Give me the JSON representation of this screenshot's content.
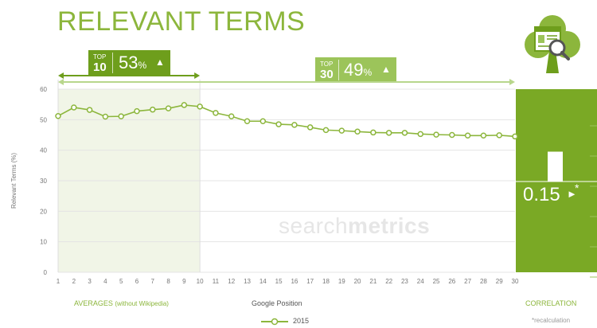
{
  "header": {
    "title": "RELEVANT TERMS"
  },
  "badges": {
    "top10": {
      "top": "TOP",
      "num": "10",
      "pct": "53",
      "unit": "%",
      "arrow": "▲"
    },
    "top30": {
      "top": "TOP",
      "num": "30",
      "pct": "49",
      "unit": "%",
      "arrow": "▲"
    }
  },
  "footer": {
    "averages": "AVERAGES",
    "averages_note": "(without Wikipedia)",
    "xlabel": "Google Position",
    "correlation": "CORRELATION",
    "recalc": "*recalculation",
    "legend": "2015"
  },
  "correlation": {
    "value": "0.15",
    "arrow": "►",
    "star": "*",
    "bar_value": 0.15
  },
  "watermark": {
    "light": "search",
    "bold": "metrics"
  },
  "colors": {
    "primary": "#8cb63c",
    "dark": "#6e9e1c",
    "band": "#f1f5e7",
    "corr_bg": "#7aa925"
  },
  "icon": {
    "name": "clover-logo-icon"
  },
  "chart_data": {
    "type": "line",
    "title": "RELEVANT TERMS",
    "xlabel": "Google Position",
    "ylabel": "Relevant Terms (%)",
    "x": [
      1,
      2,
      3,
      4,
      5,
      6,
      7,
      8,
      9,
      10,
      11,
      12,
      13,
      14,
      15,
      16,
      17,
      18,
      19,
      20,
      21,
      22,
      23,
      24,
      25,
      26,
      27,
      28,
      29,
      30
    ],
    "yticks": [
      0,
      10,
      20,
      30,
      40,
      50,
      60
    ],
    "ylim": [
      0,
      60
    ],
    "xlim": [
      1,
      30
    ],
    "series": [
      {
        "name": "2015",
        "values": [
          51.2,
          54,
          53.2,
          51,
          51.1,
          52.8,
          53.3,
          53.7,
          54.8,
          54.3,
          52.2,
          51.1,
          49.5,
          49.5,
          48.5,
          48.3,
          47.5,
          46.6,
          46.4,
          46.1,
          45.8,
          45.7,
          45.7,
          45.3,
          45.1,
          45,
          44.8,
          44.8,
          44.9,
          44.5
        ]
      }
    ],
    "grid": true,
    "legend_position": "bottom-center"
  }
}
